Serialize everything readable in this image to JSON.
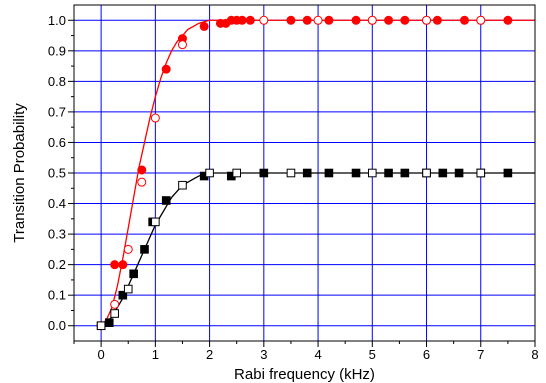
{
  "chart_data": {
    "type": "scatter",
    "xlabel": "Rabi frequency (kHz)",
    "ylabel": "Transition Probability",
    "xlim": [
      -0.5,
      8
    ],
    "ylim": [
      -0.05,
      1.05
    ],
    "xticks": [
      0,
      1,
      2,
      3,
      4,
      5,
      6,
      7,
      8
    ],
    "yticks": [
      0.0,
      0.1,
      0.2,
      0.3,
      0.4,
      0.5,
      0.6,
      0.7,
      0.8,
      0.9,
      1.0
    ],
    "ytick_labels": [
      "0.0",
      "0.1",
      "0.2",
      "0.3",
      "0.4",
      "0.5",
      "0.6",
      "0.7",
      "0.8",
      "0.9",
      "1.0"
    ],
    "grid": true,
    "grid_color": "#0000ff",
    "legend": "none",
    "series": [
      {
        "color": "#ff0000",
        "marker": "circle",
        "filled": {
          "x": [
            0.0,
            0.25,
            0.4,
            0.75,
            1.2,
            1.5,
            1.9,
            2.2,
            2.3,
            2.4,
            2.5,
            2.6,
            2.75,
            3.5,
            3.8,
            4.2,
            4.7,
            5.0,
            5.3,
            5.6,
            6.0,
            6.2,
            6.7,
            7.0,
            7.5
          ],
          "y": [
            0.0,
            0.2,
            0.2,
            0.51,
            0.84,
            0.94,
            0.98,
            0.99,
            0.99,
            1.0,
            1.0,
            1.0,
            1.0,
            1.0,
            1.0,
            1.0,
            1.0,
            1.0,
            1.0,
            1.0,
            1.0,
            1.0,
            1.0,
            1.0,
            1.0
          ]
        },
        "open": {
          "x": [
            0.0,
            0.25,
            0.5,
            0.75,
            1.0,
            1.5,
            3.0,
            4.0,
            5.0,
            6.0,
            7.0
          ],
          "y": [
            0.0,
            0.07,
            0.25,
            0.47,
            0.68,
            0.92,
            1.0,
            1.0,
            1.0,
            1.0,
            1.0
          ]
        },
        "fit_curve": {
          "x": [
            0.0,
            0.1,
            0.2,
            0.3,
            0.4,
            0.5,
            0.6,
            0.7,
            0.8,
            0.9,
            1.0,
            1.1,
            1.2,
            1.3,
            1.4,
            1.5,
            1.6,
            1.7,
            1.8,
            1.9,
            2.0,
            2.2,
            2.5,
            3.0,
            4.0,
            5.0,
            6.0,
            7.0,
            8.0
          ],
          "y": [
            0.0,
            0.02,
            0.06,
            0.13,
            0.22,
            0.32,
            0.42,
            0.52,
            0.6,
            0.68,
            0.75,
            0.81,
            0.86,
            0.9,
            0.93,
            0.95,
            0.97,
            0.98,
            0.99,
            0.995,
            1.0,
            1.0,
            1.0,
            1.0,
            1.0,
            1.0,
            1.0,
            1.0,
            1.0
          ]
        }
      },
      {
        "color": "#000000",
        "marker": "square",
        "filled": {
          "x": [
            0.0,
            0.15,
            0.4,
            0.6,
            0.8,
            0.95,
            1.2,
            1.9,
            2.4,
            3.0,
            3.8,
            4.2,
            4.7,
            5.3,
            5.6,
            6.0,
            6.3,
            6.6,
            7.0,
            7.5
          ],
          "y": [
            0.0,
            0.01,
            0.1,
            0.17,
            0.25,
            0.34,
            0.41,
            0.49,
            0.49,
            0.5,
            0.5,
            0.5,
            0.5,
            0.5,
            0.5,
            0.5,
            0.5,
            0.5,
            0.5,
            0.5
          ]
        },
        "open": {
          "x": [
            0.0,
            0.25,
            0.5,
            1.0,
            1.5,
            2.0,
            2.5,
            3.5,
            5.0,
            6.0,
            7.0
          ],
          "y": [
            0.0,
            0.04,
            0.12,
            0.34,
            0.46,
            0.5,
            0.5,
            0.5,
            0.5,
            0.5,
            0.5
          ]
        },
        "fit_curve": {
          "x": [
            0.0,
            0.1,
            0.2,
            0.3,
            0.4,
            0.5,
            0.6,
            0.7,
            0.8,
            0.9,
            1.0,
            1.1,
            1.2,
            1.3,
            1.4,
            1.5,
            1.6,
            1.7,
            1.8,
            1.9,
            2.0,
            2.2,
            2.5,
            3.0,
            4.0,
            5.0,
            6.0,
            7.0,
            8.0
          ],
          "y": [
            0.0,
            0.01,
            0.03,
            0.06,
            0.09,
            0.13,
            0.17,
            0.21,
            0.25,
            0.29,
            0.33,
            0.36,
            0.39,
            0.42,
            0.44,
            0.46,
            0.47,
            0.48,
            0.49,
            0.495,
            0.5,
            0.5,
            0.5,
            0.5,
            0.5,
            0.5,
            0.5,
            0.5,
            0.5
          ]
        }
      }
    ]
  }
}
